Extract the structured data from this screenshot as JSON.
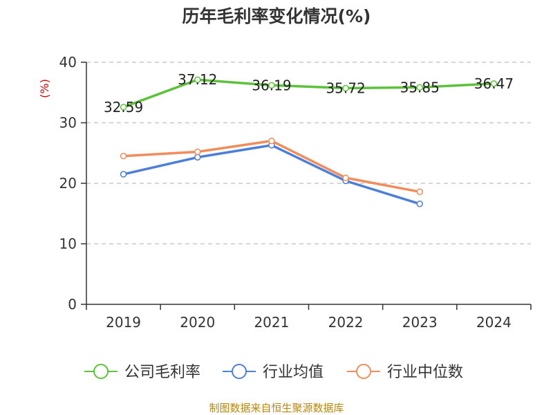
{
  "chart_data": {
    "type": "line",
    "title": "历年毛利率变化情况(%)",
    "ylabel": "(%)",
    "xlabel": "",
    "categories": [
      "2019",
      "2020",
      "2021",
      "2022",
      "2023",
      "2024"
    ],
    "ylim": [
      0,
      40
    ],
    "yticks": [
      0,
      10,
      20,
      30,
      40
    ],
    "grid": true,
    "legend_position": "bottom",
    "series": [
      {
        "name": "公司毛利率",
        "color": "#5cc23a",
        "values": [
          32.59,
          37.12,
          36.19,
          35.72,
          35.85,
          36.47
        ],
        "labels": [
          "32.59",
          "37.12",
          "36.19",
          "35.72",
          "35.85",
          "36.47"
        ]
      },
      {
        "name": "行业均值",
        "color": "#4c7fd9",
        "values": [
          21.5,
          24.3,
          26.3,
          20.4,
          16.6,
          null
        ]
      },
      {
        "name": "行业中位数",
        "color": "#f28c5a",
        "values": [
          24.5,
          25.2,
          27.0,
          20.9,
          18.6,
          null
        ]
      }
    ]
  },
  "footer": {
    "source": "制图数据来自恒生聚源数据库"
  },
  "colors": {
    "title": "#333333",
    "ylabel": "#cc0000",
    "axis": "#333333",
    "grid": "#c8c8c8",
    "footer": "#b8860b"
  }
}
